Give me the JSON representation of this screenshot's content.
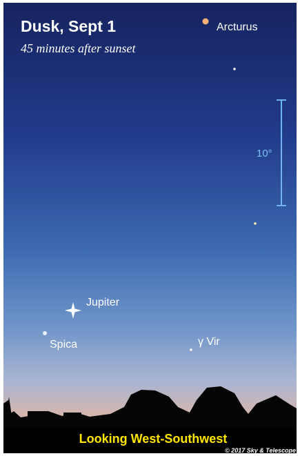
{
  "header": {
    "title": "Dusk, Sept 1",
    "subtitle": "45 minutes after sunset"
  },
  "labels": {
    "arcturus": "Arcturus",
    "jupiter": "Jupiter",
    "spica": "Spica",
    "gamma_vir": "γ Vir"
  },
  "scale": "10°",
  "footer": {
    "direction": "Looking West-Southwest",
    "credit": "© 2017 Sky & Telescope"
  }
}
